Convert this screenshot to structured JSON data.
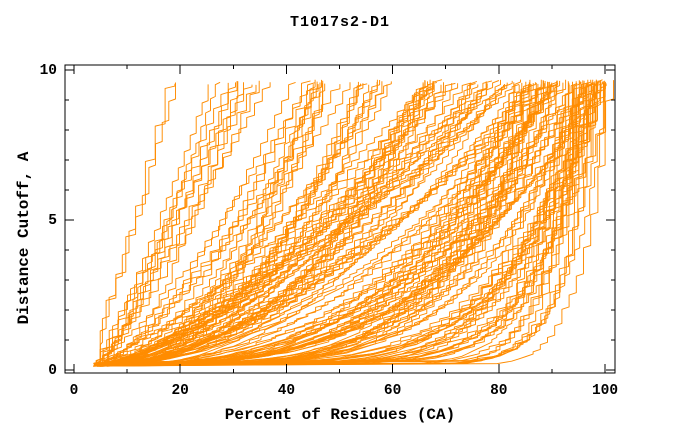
{
  "chart_data": {
    "type": "line",
    "title": "T1017s2-D1",
    "xlabel": "Percent of Residues (CA)",
    "ylabel": "Distance Cutoff, A",
    "xlim": [
      0,
      100
    ],
    "ylim": [
      0,
      10
    ],
    "x_major_ticks": [
      0,
      20,
      40,
      60,
      80,
      100
    ],
    "x_minor_step": 10,
    "y_major_ticks": [
      0,
      5,
      10
    ],
    "y_minor_step": 1,
    "grid": false,
    "legend": null,
    "line_color": "#ff8c00",
    "axis_color": "#000000",
    "background": "#ffffff",
    "description": "Cumulative distance-cutoff curves (percent of CA residues under each distance cutoff) for many predicted models of CASP target T1017s2-D1; every curve rises monotonically from about 5% at 0 A toward its final coverage near 9.7 A.",
    "envelope_curves": {
      "left_envelope": [
        [
          5,
          0.2
        ],
        [
          7,
          2.0
        ],
        [
          10,
          4.5
        ],
        [
          13,
          7.0
        ],
        [
          16,
          8.5
        ],
        [
          20,
          9.7
        ]
      ],
      "bottom_envelope": [
        [
          5,
          0.2
        ],
        [
          20,
          0.4
        ],
        [
          40,
          0.7
        ],
        [
          60,
          1.0
        ],
        [
          80,
          1.8
        ],
        [
          90,
          2.8
        ],
        [
          96,
          4.5
        ],
        [
          99,
          7.0
        ],
        [
          100.5,
          9.7
        ]
      ],
      "median_curve": [
        [
          5,
          0.3
        ],
        [
          15,
          1.0
        ],
        [
          25,
          2.2
        ],
        [
          40,
          4.0
        ],
        [
          55,
          5.8
        ],
        [
          70,
          7.5
        ],
        [
          85,
          9.0
        ],
        [
          92,
          9.7
        ]
      ]
    },
    "curves": {
      "count": 158,
      "seed": 1017,
      "y_start": 0.12,
      "y_top_range": [
        9.5,
        9.68
      ],
      "x_start_range": [
        3.6,
        6.6
      ],
      "families": [
        {
          "share": 0.02,
          "x_end_range": [
            19,
            22
          ],
          "exponent_range": [
            0.85,
            1.25
          ]
        },
        {
          "share": 0.08,
          "x_end_range": [
            26,
            44
          ],
          "exponent_range": [
            0.6,
            1.1
          ]
        },
        {
          "share": 0.42,
          "x_end_range": [
            44,
            90
          ],
          "exponent_range": [
            0.35,
            0.8
          ]
        },
        {
          "share": 0.22,
          "x_end_range": [
            85,
            99.5
          ],
          "exponent_range": [
            0.18,
            0.42
          ]
        },
        {
          "share": 0.22,
          "x_end_range": [
            95,
            101.3
          ],
          "exponent_range": [
            0.06,
            0.2
          ]
        },
        {
          "share": 0.04,
          "x_end_range": [
            99,
            101.5
          ],
          "exponent_range": [
            0.04,
            0.07
          ]
        }
      ],
      "quantize_step_range": [
        0.9,
        2.0
      ],
      "wobble_amplitude": 1.6,
      "drift": 0.22
    }
  }
}
